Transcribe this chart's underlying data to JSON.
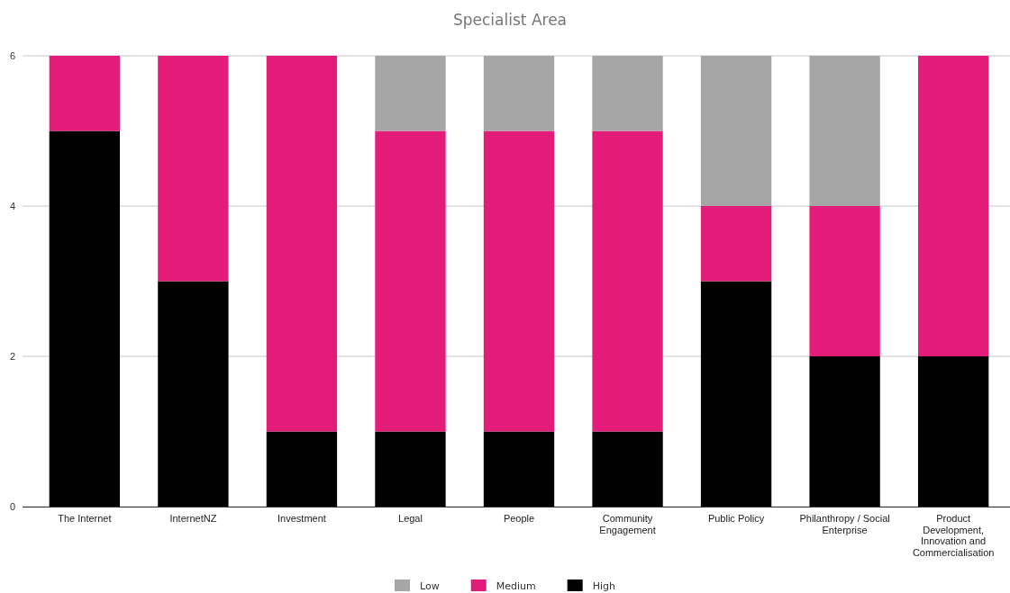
{
  "chart_data": {
    "type": "bar",
    "title": "Specialist Area",
    "stacked": true,
    "grid": "y",
    "legend": "bottom",
    "categories": [
      "The Internet",
      "InternetNZ",
      "Investment",
      "Legal",
      "People",
      "Community Engagement",
      "Public Policy",
      "Philanthropy / Social Enterprise",
      "Product Development, Innovation and Commercialisation"
    ],
    "ylim": [
      0,
      6
    ],
    "yticks": [
      0,
      2,
      4,
      6
    ],
    "series": [
      {
        "name": "High",
        "color": "#000000",
        "values": [
          5,
          3,
          1,
          1,
          1,
          1,
          3,
          2,
          2
        ]
      },
      {
        "name": "Medium",
        "color": "#e31c79",
        "values": [
          1,
          3,
          5,
          4,
          4,
          4,
          1,
          2,
          4
        ]
      },
      {
        "name": "Low",
        "color": "#a6a6a6",
        "values": [
          0,
          0,
          0,
          1,
          1,
          1,
          2,
          2,
          0
        ]
      }
    ]
  }
}
